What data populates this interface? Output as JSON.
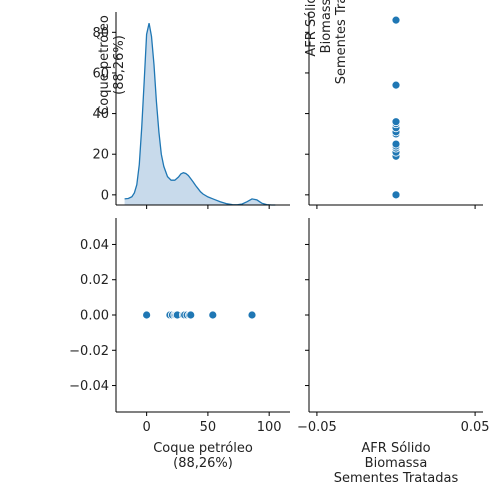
{
  "chart_data": {
    "type": "pairplot",
    "variables": [
      "Coque petróleo\n(88,26%)",
      "AFR Sólido\nBiomassa\nSementes Tratadas"
    ],
    "x_values": [
      0,
      0,
      19,
      21,
      23,
      24,
      25,
      30,
      31,
      33,
      35,
      36,
      54,
      86
    ],
    "y_values": [
      0,
      0,
      0,
      0,
      0,
      0,
      0,
      0,
      0,
      0,
      0,
      0,
      0,
      0
    ],
    "kde_curve": {
      "x": [
        -18,
        -15,
        -12,
        -10,
        -8,
        -6,
        -4,
        -2,
        0,
        2,
        4,
        6,
        8,
        10,
        12,
        14,
        17,
        20,
        23,
        26,
        28,
        30,
        32,
        34,
        36,
        38,
        40,
        42,
        44,
        46,
        50,
        55,
        60,
        65,
        70,
        74,
        78,
        82,
        86,
        90,
        94,
        98,
        102,
        105
      ],
      "y": [
        -2,
        -1.8,
        -0.9,
        1,
        5,
        15,
        33,
        56,
        79,
        84.5,
        78,
        64,
        46,
        31,
        20,
        14,
        9,
        7.2,
        7.2,
        8.8,
        10.3,
        10.9,
        10.5,
        9.5,
        8,
        6.3,
        4.6,
        3,
        1.5,
        0.4,
        -1,
        -2.2,
        -3.4,
        -4.3,
        -4.8,
        -4.9,
        -4.5,
        -3.4,
        -2,
        -2.5,
        -4.1,
        -4.8,
        -5,
        -5
      ]
    },
    "colors": {
      "series": "#1f77b4",
      "fill": "#c5d8ea"
    },
    "diag_kde_yaxis": {
      "ticks": [
        0,
        20,
        40,
        60,
        80
      ],
      "range": [
        -5,
        90
      ]
    },
    "x_axis_var1": {
      "ticks": [
        0,
        50,
        100
      ],
      "range": [
        -25,
        117
      ]
    },
    "x_axis_var2": {
      "ticks": [
        -0.05,
        0.05
      ],
      "tick_labels": [
        "−0.05",
        "0.05"
      ],
      "range": [
        -0.055,
        0.055
      ]
    },
    "y_axis_var2": {
      "ticks": [
        -0.04,
        -0.02,
        0.0,
        0.02,
        0.04
      ],
      "tick_labels": [
        "−0.04",
        "−0.02",
        "0.00",
        "0.02",
        "0.04"
      ],
      "range": [
        -0.055,
        0.055
      ]
    },
    "grid": false,
    "legend": "none"
  }
}
